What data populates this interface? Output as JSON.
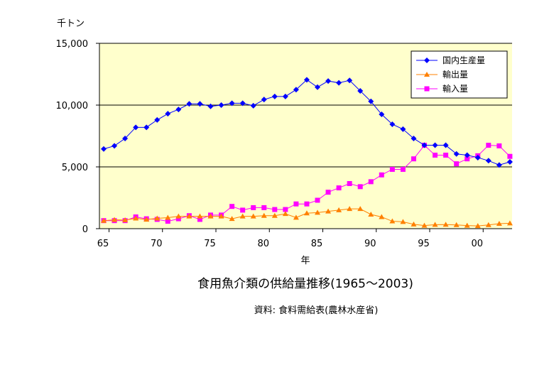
{
  "chart_data": {
    "type": "line",
    "title": "食用魚介類の供給量推移(1965～2003)",
    "source": "資料: 食料需給表(農林水産省)",
    "xlabel": "年",
    "ylabel": "千トン",
    "ylim": [
      0,
      15000
    ],
    "yticks": [
      0,
      5000,
      10000,
      15000
    ],
    "ytick_labels": [
      "0",
      "5,000",
      "10,000",
      "15,000"
    ],
    "xticks": [
      1965,
      1970,
      1975,
      1980,
      1985,
      1990,
      1995,
      2000
    ],
    "xtick_labels": [
      "65",
      "70",
      "75",
      "80",
      "85",
      "90",
      "95",
      "00"
    ],
    "grid": "horizontal",
    "legend_position": "top-right",
    "background": "#ffffcc",
    "x": [
      1965,
      1966,
      1967,
      1968,
      1969,
      1970,
      1971,
      1972,
      1973,
      1974,
      1975,
      1976,
      1977,
      1978,
      1979,
      1980,
      1981,
      1982,
      1983,
      1984,
      1985,
      1986,
      1987,
      1988,
      1989,
      1990,
      1991,
      1992,
      1993,
      1994,
      1995,
      1996,
      1997,
      1998,
      1999,
      2000,
      2001,
      2002,
      2003
    ],
    "series": [
      {
        "name": "国内生産量",
        "color": "#0000ff",
        "marker": "diamond",
        "values": [
          6450,
          6700,
          7300,
          8200,
          8200,
          8800,
          9300,
          9650,
          10100,
          10100,
          9900,
          10000,
          10150,
          10150,
          9950,
          10450,
          10700,
          10700,
          11250,
          12050,
          11450,
          11950,
          11800,
          12000,
          11150,
          10300,
          9250,
          8450,
          8050,
          7300,
          6750,
          6750,
          6750,
          6050,
          5950,
          5750,
          5500,
          5150,
          5400
        ]
      },
      {
        "name": "輸出量",
        "color": "#ff8000",
        "marker": "triangle",
        "values": [
          650,
          720,
          700,
          830,
          740,
          830,
          890,
          1000,
          1000,
          1000,
          1000,
          1000,
          800,
          1000,
          1000,
          1050,
          1050,
          1200,
          900,
          1250,
          1300,
          1400,
          1500,
          1600,
          1600,
          1150,
          950,
          600,
          550,
          350,
          250,
          320,
          330,
          300,
          250,
          220,
          300,
          400,
          440
        ]
      },
      {
        "name": "輸入量",
        "color": "#ff00ff",
        "marker": "square",
        "values": [
          650,
          650,
          650,
          950,
          800,
          750,
          600,
          800,
          1050,
          750,
          1100,
          1100,
          1800,
          1500,
          1700,
          1700,
          1550,
          1550,
          2000,
          2000,
          2300,
          2950,
          3300,
          3650,
          3400,
          3800,
          4350,
          4800,
          4800,
          5650,
          6750,
          5950,
          5950,
          5250,
          5650,
          5900,
          6750,
          6700,
          5850
        ]
      }
    ]
  }
}
